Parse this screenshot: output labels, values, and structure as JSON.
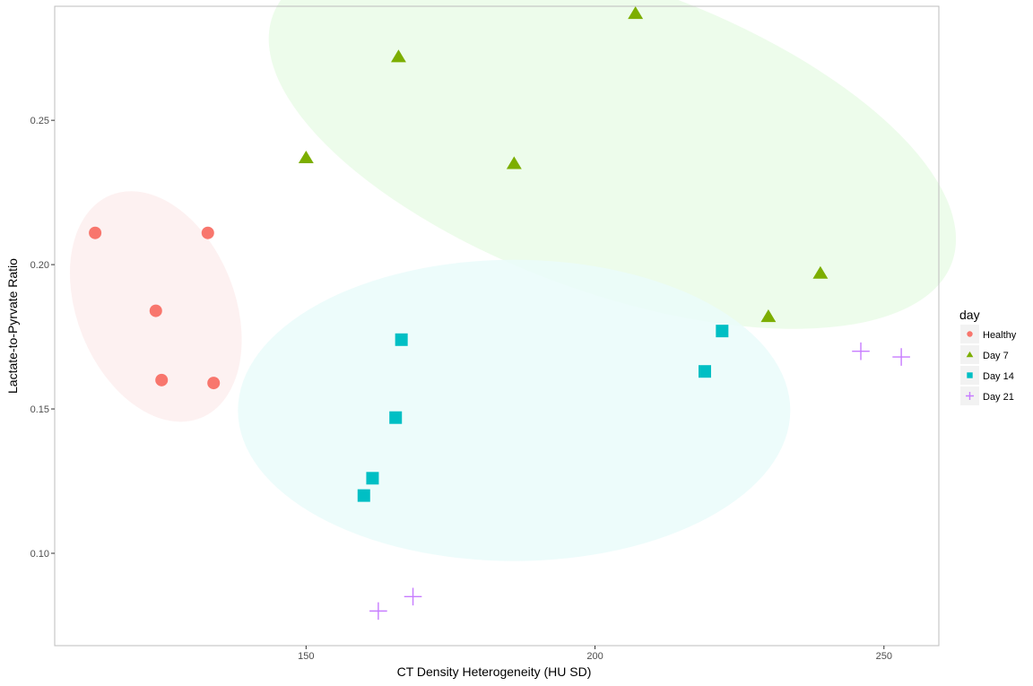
{
  "chart_data": {
    "type": "scatter",
    "xlabel": "CT Density Heterogeneity (HU SD)",
    "ylabel": "Lactate-to-Pyrvate Ratio",
    "xlim": [
      106.5,
      259.5
    ],
    "ylim": [
      0.068,
      0.2895
    ],
    "x_ticks": [
      150,
      200,
      250
    ],
    "y_ticks": [
      0.1,
      0.15,
      0.2,
      0.25
    ],
    "grid": false,
    "legend_position": "right",
    "legend_title": "day",
    "series": [
      {
        "name": "Healthy",
        "marker": "circle",
        "color": "#F8766D",
        "points": [
          [
            113.5,
            0.211
          ],
          [
            124,
            0.184
          ],
          [
            125,
            0.16
          ],
          [
            133,
            0.211
          ],
          [
            134,
            0.159
          ]
        ]
      },
      {
        "name": "Day 7",
        "marker": "triangle",
        "color": "#7CAE00",
        "points": [
          [
            150,
            0.237
          ],
          [
            166,
            0.272
          ],
          [
            186,
            0.235
          ],
          [
            207,
            0.287
          ],
          [
            230,
            0.182
          ],
          [
            239,
            0.197
          ]
        ]
      },
      {
        "name": "Day 14",
        "marker": "square",
        "color": "#00BFC4",
        "points": [
          [
            160,
            0.12
          ],
          [
            161.5,
            0.126
          ],
          [
            165.5,
            0.147
          ],
          [
            166.5,
            0.174
          ],
          [
            219,
            0.163
          ],
          [
            222,
            0.177
          ]
        ]
      },
      {
        "name": "Day 21",
        "marker": "cross",
        "color": "#C77CFF",
        "points": [
          [
            162.5,
            0.08
          ],
          [
            168.5,
            0.085
          ],
          [
            246,
            0.17
          ],
          [
            253,
            0.168
          ]
        ]
      }
    ],
    "ellipses": [
      {
        "series": "Healthy",
        "cx": 124,
        "cy": 0.1855,
        "rx_px": 88,
        "ry_px": 134,
        "rotation": -22,
        "fill": "#fdeeee"
      },
      {
        "series": "Day 7",
        "cx": 203,
        "cy": 0.2435,
        "rx_px": 403,
        "ry_px": 171,
        "rotation": 20,
        "fill": "#eafbe8"
      },
      {
        "series": "Day 14",
        "cx": 186,
        "cy": 0.1495,
        "rx_px": 308,
        "ry_px": 168,
        "rotation": 0,
        "fill": "#eafcfa"
      }
    ]
  }
}
